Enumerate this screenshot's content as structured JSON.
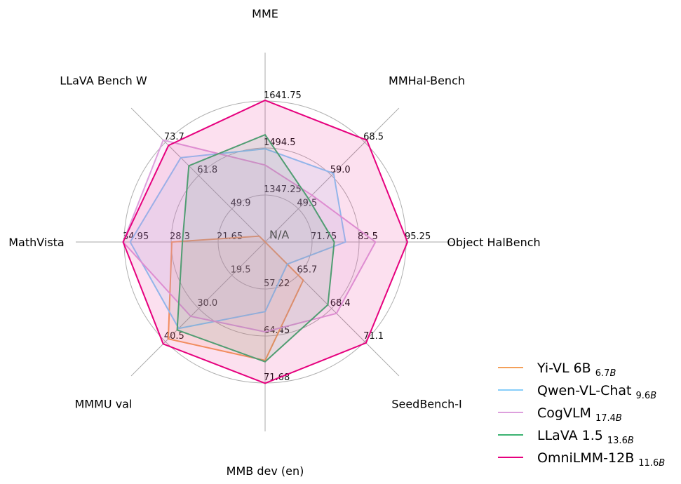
{
  "chart_data": {
    "type": "radar",
    "center_label": "N/A",
    "grid": true,
    "legend_placement": "bottom-right",
    "axes": [
      {
        "name": "MME",
        "min": 1200,
        "ticks": [
          "1347.25",
          "1494.5",
          "1641.75"
        ]
      },
      {
        "name": "MMHal-Bench",
        "min": 40,
        "ticks": [
          "49.5",
          "59.0",
          "68.5"
        ]
      },
      {
        "name": "Object HalBench",
        "min": 60,
        "ticks": [
          "71.75",
          "83.5",
          "95.25"
        ]
      },
      {
        "name": "SeedBench-I",
        "min": 63,
        "ticks": [
          "65.7",
          "68.4",
          "71.1"
        ]
      },
      {
        "name": "MMB dev (en)",
        "min": 50,
        "ticks": [
          "57.22",
          "64.45",
          "71.68"
        ]
      },
      {
        "name": "MMMU val",
        "min": 9,
        "ticks": [
          "19.5",
          "30.0",
          "40.5"
        ]
      },
      {
        "name": "MathVista",
        "min": 15,
        "ticks": [
          "21.65",
          "28.3",
          "34.95"
        ]
      },
      {
        "name": "LLaVA Bench W",
        "min": 38,
        "ticks": [
          "49.9",
          "61.8",
          "73.7"
        ]
      }
    ],
    "series": [
      {
        "name": "Yi-VL 6B",
        "size": "6.7B",
        "color": "#f4a05a",
        "values": [
          null,
          null,
          null,
          66.1,
          68.2,
          39.6,
          28.2,
          40.1
        ]
      },
      {
        "name": "Qwen-VL-Chat",
        "size": "9.6B",
        "color": "#87cefa",
        "values": [
          1492,
          59.6,
          80.1,
          64.8,
          60.7,
          36.3,
          34.1,
          68.2
        ]
      },
      {
        "name": "CogVLM",
        "size": "17.4B",
        "color": "#dda0dd",
        "values": [
          1441,
          53.4,
          87.6,
          68.8,
          63.8,
          32.5,
          35.1,
          74.5
        ]
      },
      {
        "name": "LLaVA 1.5",
        "size": "13.6B",
        "color": "#3cb371",
        "values": [
          1536,
          52.4,
          77.3,
          68.1,
          68.4,
          36.8,
          26.7,
          65.3
        ]
      },
      {
        "name": "OmniLMM-12B",
        "size": "11.6B",
        "color": "#e6007e",
        "values": [
          1644,
          69.1,
          95.6,
          71.2,
          71.7,
          41.2,
          35.1,
          72.6
        ]
      }
    ]
  }
}
